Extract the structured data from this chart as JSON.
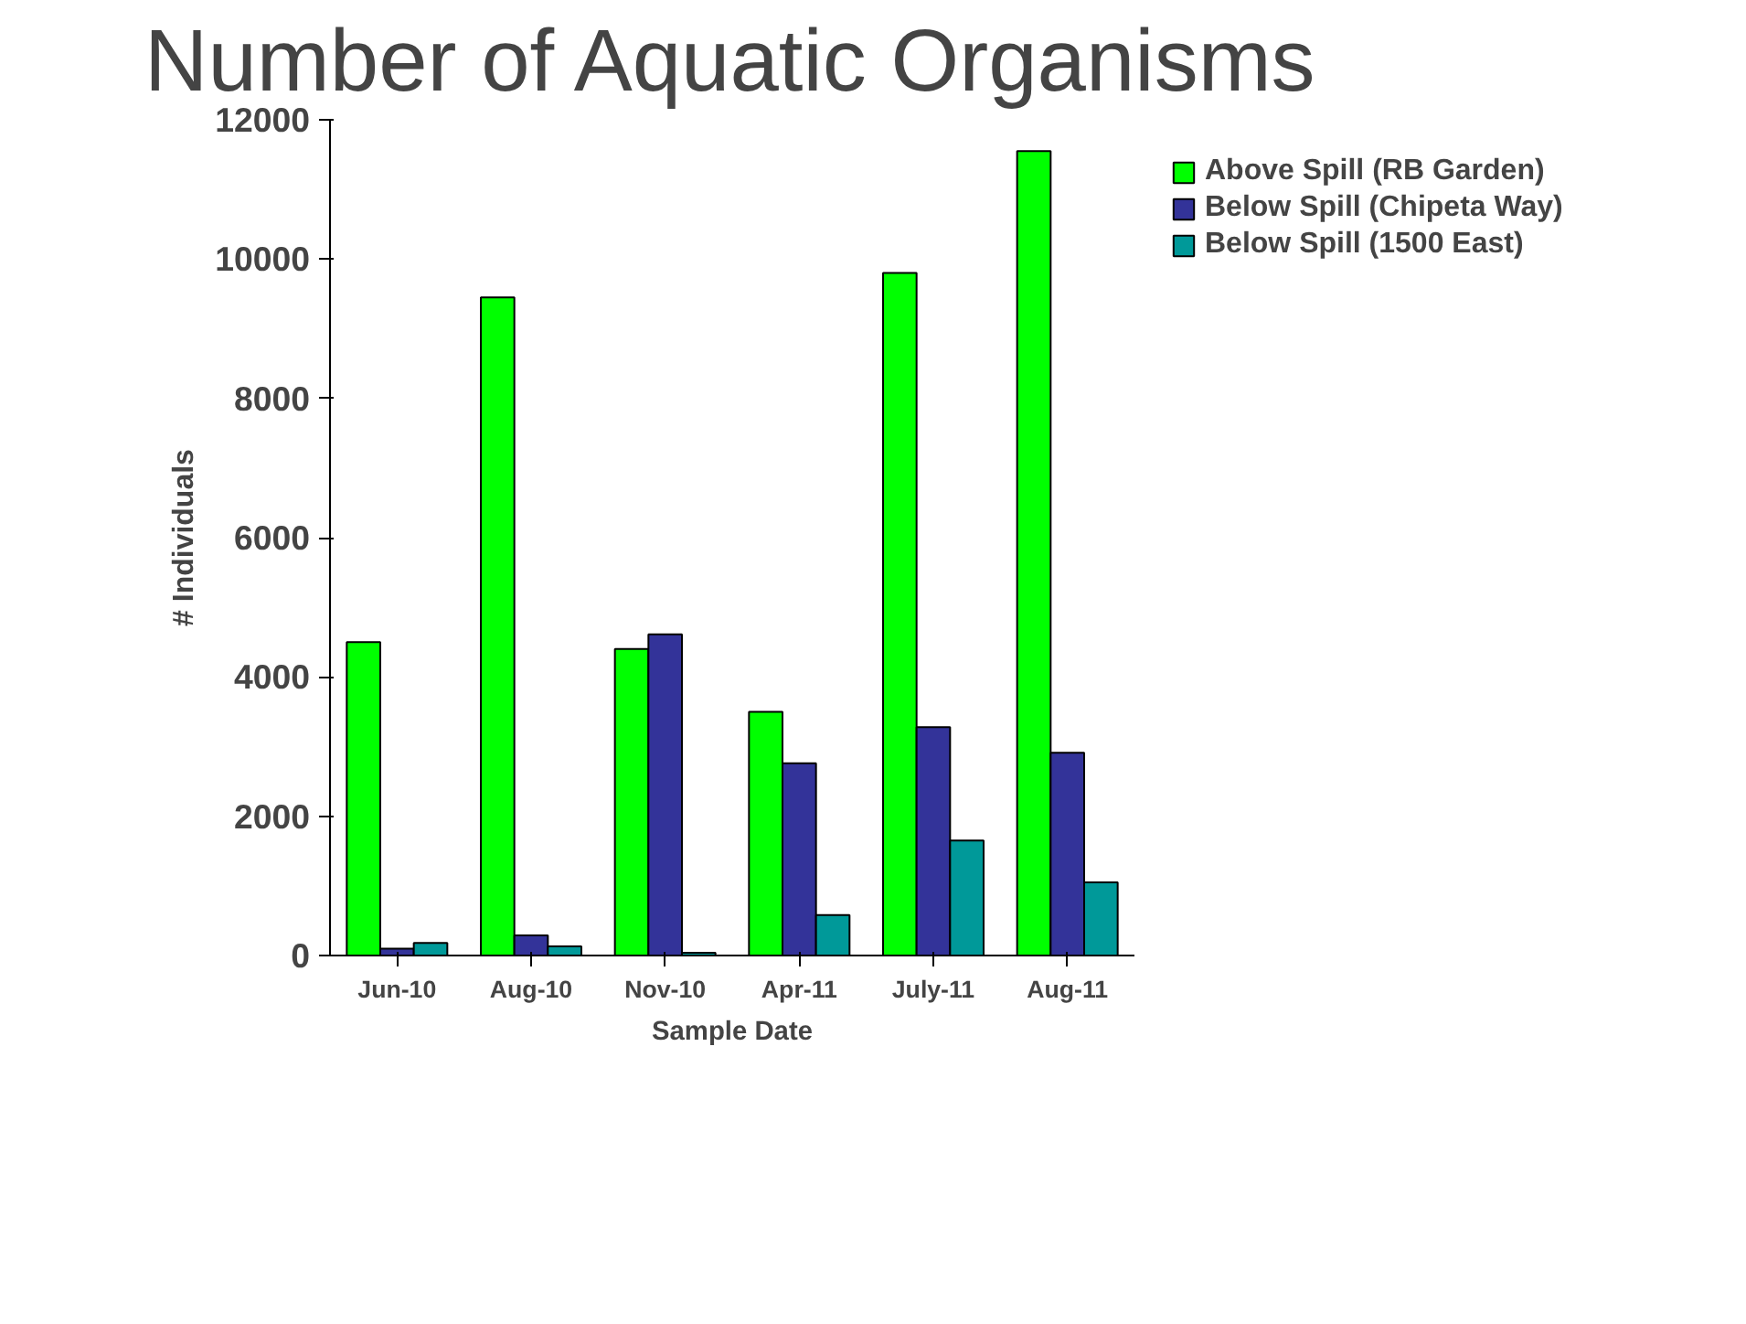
{
  "chart_data": {
    "type": "bar",
    "title": "Number of Aquatic Organisms",
    "xlabel": "Sample Date",
    "ylabel": "# Individuals",
    "categories": [
      "Jun-10",
      "Aug-10",
      "Nov-10",
      "Apr-11",
      "July-11",
      "Aug-11"
    ],
    "series": [
      {
        "name": "Above Spill (RB Garden)",
        "color": "#00ff00",
        "values": [
          4500,
          9450,
          4400,
          3500,
          9800,
          11550
        ]
      },
      {
        "name": "Below Spill (Chipeta Way)",
        "color": "#333399",
        "values": [
          100,
          290,
          4610,
          2760,
          3280,
          2910
        ]
      },
      {
        "name": "Below Spill (1500 East)",
        "color": "#009999",
        "values": [
          180,
          130,
          40,
          580,
          1650,
          1050
        ]
      }
    ],
    "ylim": [
      0,
      12000
    ],
    "yticks": [
      0,
      2000,
      4000,
      6000,
      8000,
      10000,
      12000
    ],
    "grid": false,
    "legend": "top right"
  }
}
